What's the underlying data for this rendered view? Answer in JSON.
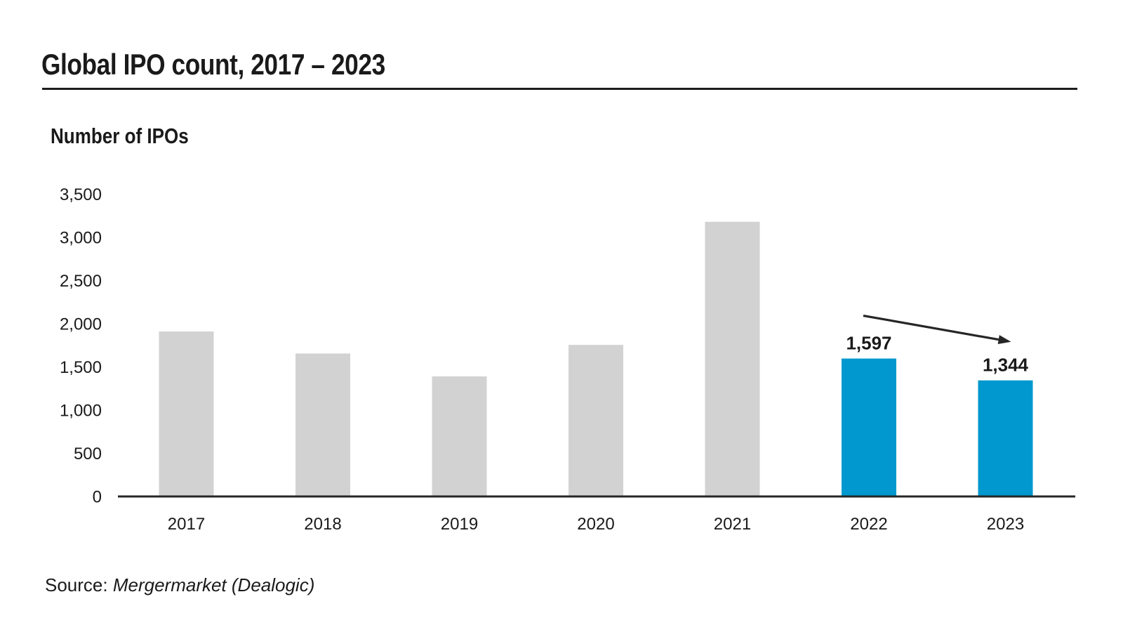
{
  "page": {
    "source_prefix": "Source:",
    "source_name": "Mergermarket (Dealogic)"
  },
  "chart_data": {
    "type": "bar",
    "title": "Global IPO count, 2017 – 2023",
    "ylabel": "Number of IPOs",
    "xlabel": "",
    "categories": [
      "2017",
      "2018",
      "2019",
      "2020",
      "2021",
      "2022",
      "2023"
    ],
    "values": [
      1910,
      1655,
      1390,
      1755,
      3180,
      1597,
      1344
    ],
    "value_labels": [
      "",
      "",
      "",
      "",
      "",
      "1,597",
      "1,344"
    ],
    "highlighted": [
      false,
      false,
      false,
      false,
      false,
      true,
      true
    ],
    "ylim": [
      0,
      3500
    ],
    "y_tick_step": 500,
    "y_tick_labels": [
      "0",
      "500",
      "1,000",
      "1,500",
      "2,000",
      "2,500",
      "3,000",
      "3,500"
    ],
    "grid": false,
    "legend": false,
    "colors": {
      "bar_default": "#d2d2d2",
      "bar_highlight": "#0098ce",
      "axis": "#262626",
      "text": "#1a1a1a"
    },
    "annotation": {
      "type": "decline-arrow",
      "from_category": "2022",
      "to_category": "2023"
    }
  }
}
